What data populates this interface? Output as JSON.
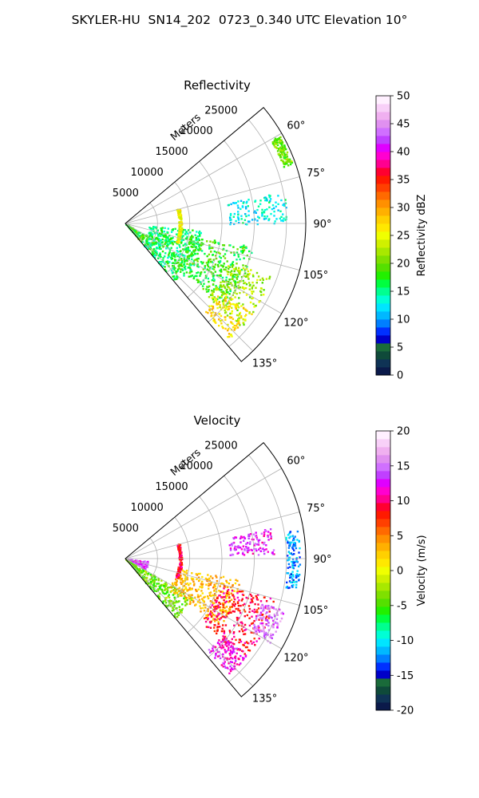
{
  "title": "SKYLER-HU  SN14_202  0723_0.340 UTC Elevation 10°",
  "chart_data": [
    {
      "type": "heatmap",
      "projection": "polar-sector",
      "title": "Reflectivity",
      "radial_label": "Meters",
      "radial_ticks": [
        5000,
        10000,
        15000,
        20000,
        25000
      ],
      "r_max": 28000,
      "angle_range_deg": [
        50,
        140
      ],
      "angular_ticks_deg": [
        60,
        75,
        90,
        105,
        120,
        135
      ],
      "angular_tick_labels": [
        "60°",
        "75°",
        "90°",
        "105°",
        "120°",
        "135°"
      ],
      "grid": true,
      "colorbar": {
        "label": "Reflectivity dBZ",
        "min": 0,
        "max": 50,
        "ticks": [
          0,
          5,
          10,
          15,
          20,
          25,
          30,
          35,
          40,
          45,
          50
        ],
        "colors": [
          "#0b1a4a",
          "#0f3355",
          "#0f4a3a",
          "#1a6b3a",
          "#0000c8",
          "#0030ff",
          "#007fff",
          "#00b8ff",
          "#00e5ff",
          "#00ffd5",
          "#00ff90",
          "#00ff40",
          "#22f000",
          "#55e000",
          "#7fe000",
          "#a8e800",
          "#d0f000",
          "#f0ff00",
          "#ffe800",
          "#ffd000",
          "#ffb000",
          "#ff9000",
          "#ff6a00",
          "#ff4000",
          "#ff1a00",
          "#ff0030",
          "#ff0090",
          "#ff00d0",
          "#e000ff",
          "#c040ff",
          "#d070ff",
          "#e090f0",
          "#f0b0f0",
          "#f8d0f8",
          "#fff0ff"
        ]
      },
      "echoes": [
        {
          "az": [
            120,
            140
          ],
          "r": [
            0,
            3500
          ],
          "value": 18
        },
        {
          "az": [
            95,
            140
          ],
          "r": [
            3500,
            12000
          ],
          "value": 16
        },
        {
          "az": [
            100,
            130
          ],
          "r": [
            10000,
            20000
          ],
          "value": 18
        },
        {
          "az": [
            110,
            132
          ],
          "r": [
            17000,
            24000
          ],
          "value": 22
        },
        {
          "az": [
            125,
            138
          ],
          "r": [
            18000,
            24000
          ],
          "value": 27
        },
        {
          "az": [
            78,
            90
          ],
          "r": [
            16000,
            25000
          ],
          "value": 13
        },
        {
          "az": [
            74,
            110
          ],
          "r": [
            8200,
            8700
          ],
          "value": 25
        },
        {
          "az": [
            60,
            70
          ],
          "r": [
            26000,
            27500
          ],
          "value": 20
        }
      ]
    },
    {
      "type": "heatmap",
      "projection": "polar-sector",
      "title": "Velocity",
      "radial_label": "Meters",
      "radial_ticks": [
        5000,
        10000,
        15000,
        20000,
        25000
      ],
      "r_max": 28000,
      "angle_range_deg": [
        50,
        140
      ],
      "angular_ticks_deg": [
        60,
        75,
        90,
        105,
        120,
        135
      ],
      "angular_tick_labels": [
        "60°",
        "75°",
        "90°",
        "105°",
        "120°",
        "135°"
      ],
      "grid": true,
      "colorbar": {
        "label": "Velocity (m/s)",
        "min": -20,
        "max": 20,
        "ticks": [
          -20,
          -15,
          -10,
          -5,
          0,
          5,
          10,
          15,
          20
        ],
        "colors": [
          "#0b1a4a",
          "#0f3355",
          "#0f4a3a",
          "#1a6b3a",
          "#0000c8",
          "#0030ff",
          "#007fff",
          "#00b8ff",
          "#00e5ff",
          "#00ffd5",
          "#00ff90",
          "#00ff40",
          "#22f000",
          "#55e000",
          "#7fe000",
          "#a8e800",
          "#d0f000",
          "#f0ff00",
          "#ffe800",
          "#ffd000",
          "#ffb000",
          "#ff9000",
          "#ff6a00",
          "#ff4000",
          "#ff1a00",
          "#ff0030",
          "#ff0090",
          "#ff00d0",
          "#e000ff",
          "#c040ff",
          "#d070ff",
          "#e090f0",
          "#f0b0f0",
          "#f8d0f8",
          "#fff0ff"
        ]
      },
      "echoes": [
        {
          "az": [
            95,
            120
          ],
          "r": [
            0,
            3500
          ],
          "value": 14
        },
        {
          "az": [
            120,
            140
          ],
          "r": [
            0,
            12000
          ],
          "value": -4
        },
        {
          "az": [
            100,
            125
          ],
          "r": [
            8000,
            18000
          ],
          "value": 3
        },
        {
          "az": [
            105,
            130
          ],
          "r": [
            15000,
            24000
          ],
          "value": 9
        },
        {
          "az": [
            128,
            138
          ],
          "r": [
            19000,
            24000
          ],
          "value": 12
        },
        {
          "az": [
            108,
            120
          ],
          "r": [
            22000,
            26000
          ],
          "value": 15
        },
        {
          "az": [
            78,
            88
          ],
          "r": [
            16000,
            23000
          ],
          "value": 13
        },
        {
          "az": [
            80,
            100
          ],
          "r": [
            25000,
            27000
          ],
          "value": -12
        },
        {
          "az": [
            74,
            110
          ],
          "r": [
            8200,
            8700
          ],
          "value": 9
        }
      ]
    }
  ]
}
